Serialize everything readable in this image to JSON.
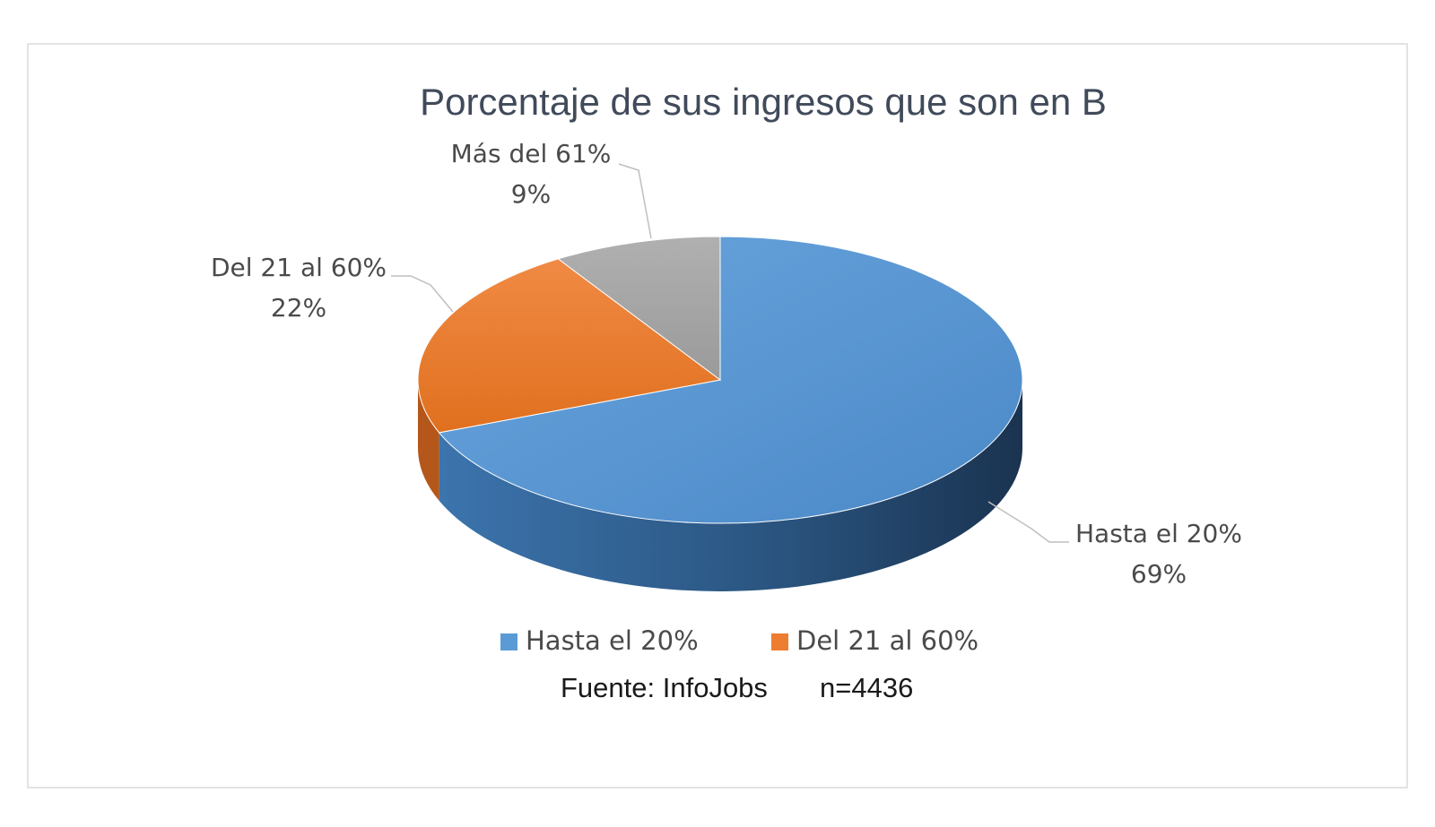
{
  "chart_data": {
    "type": "pie",
    "title": "Porcentaje de sus ingresos que son en B",
    "categories": [
      "Hasta el 20%",
      "Del 21 al 60%",
      "Más del 61%"
    ],
    "values": [
      69,
      22,
      9
    ],
    "value_labels": [
      "69%",
      "22%",
      "9%"
    ],
    "colors": [
      "#5b9bd5",
      "#ed7d31",
      "#a5a5a5"
    ],
    "legend": {
      "position": "bottom",
      "entries": [
        "Hasta el 20%",
        "Del 21 al 60%"
      ]
    },
    "style": "3d"
  },
  "source": {
    "label": "Fuente: InfoJobs",
    "sample": "n=4436"
  }
}
